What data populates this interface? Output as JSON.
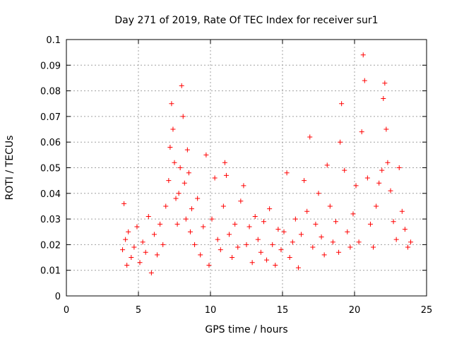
{
  "chart_data": {
    "type": "scatter",
    "title": "Day 271 of 2019, Rate Of TEC Index for receiver sur1",
    "xlabel": "GPS time / hours",
    "ylabel": "ROTI / TECUs",
    "xlim": [
      0,
      25
    ],
    "ylim": [
      0,
      0.1
    ],
    "xticks": [
      "0",
      "5",
      "10",
      "15",
      "20",
      "25"
    ],
    "yticks": [
      "0",
      "0.01",
      "0.02",
      "0.03",
      "0.04",
      "0.05",
      "0.06",
      "0.07",
      "0.08",
      "0.09",
      "0.1"
    ],
    "grid": true,
    "marker": "+",
    "color": "#ff0000",
    "series": [
      {
        "x": [
          3.9,
          4.0,
          4.1,
          4.2,
          4.3,
          4.5,
          4.7,
          4.9,
          5.1,
          5.3,
          5.5,
          5.7,
          5.9,
          6.1,
          6.3,
          6.5,
          6.7,
          6.9,
          7.1,
          7.2,
          7.3,
          7.4,
          7.5,
          7.6,
          7.7,
          7.8,
          7.9,
          8.0,
          8.1,
          8.2,
          8.3,
          8.4,
          8.5,
          8.6,
          8.7,
          8.9,
          9.1,
          9.3,
          9.5,
          9.7,
          9.9,
          10.1,
          10.3,
          10.5,
          10.7,
          10.9,
          11.0,
          11.1,
          11.3,
          11.5,
          11.7,
          11.9,
          12.1,
          12.3,
          12.5,
          12.7,
          12.9,
          13.1,
          13.3,
          13.5,
          13.7,
          13.9,
          14.1,
          14.3,
          14.5,
          14.7,
          14.9,
          15.1,
          15.3,
          15.5,
          15.7,
          15.9,
          16.1,
          16.3,
          16.5,
          16.7,
          16.9,
          17.1,
          17.3,
          17.5,
          17.7,
          17.9,
          18.1,
          18.3,
          18.5,
          18.7,
          18.9,
          19.0,
          19.1,
          19.3,
          19.5,
          19.7,
          19.9,
          20.1,
          20.3,
          20.5,
          20.6,
          20.7,
          20.9,
          21.1,
          21.3,
          21.5,
          21.7,
          21.9,
          22.0,
          22.1,
          22.2,
          22.3,
          22.5,
          22.7,
          22.9,
          23.1,
          23.3,
          23.5,
          23.7,
          23.9
        ],
        "y": [
          0.018,
          0.036,
          0.022,
          0.012,
          0.025,
          0.015,
          0.019,
          0.027,
          0.013,
          0.021,
          0.017,
          0.031,
          0.009,
          0.024,
          0.016,
          0.028,
          0.02,
          0.035,
          0.045,
          0.058,
          0.075,
          0.065,
          0.052,
          0.038,
          0.028,
          0.04,
          0.05,
          0.082,
          0.07,
          0.044,
          0.03,
          0.057,
          0.048,
          0.025,
          0.034,
          0.02,
          0.038,
          0.016,
          0.027,
          0.055,
          0.012,
          0.03,
          0.046,
          0.022,
          0.018,
          0.035,
          0.052,
          0.047,
          0.024,
          0.015,
          0.028,
          0.019,
          0.037,
          0.043,
          0.02,
          0.027,
          0.013,
          0.031,
          0.022,
          0.017,
          0.029,
          0.014,
          0.034,
          0.02,
          0.012,
          0.026,
          0.018,
          0.025,
          0.048,
          0.015,
          0.021,
          0.03,
          0.011,
          0.024,
          0.045,
          0.033,
          0.062,
          0.019,
          0.028,
          0.04,
          0.023,
          0.016,
          0.051,
          0.035,
          0.021,
          0.029,
          0.017,
          0.06,
          0.075,
          0.049,
          0.025,
          0.019,
          0.032,
          0.043,
          0.021,
          0.064,
          0.094,
          0.084,
          0.046,
          0.028,
          0.019,
          0.035,
          0.044,
          0.049,
          0.077,
          0.083,
          0.065,
          0.052,
          0.041,
          0.029,
          0.022,
          0.05,
          0.033,
          0.026,
          0.019,
          0.021
        ]
      }
    ]
  }
}
